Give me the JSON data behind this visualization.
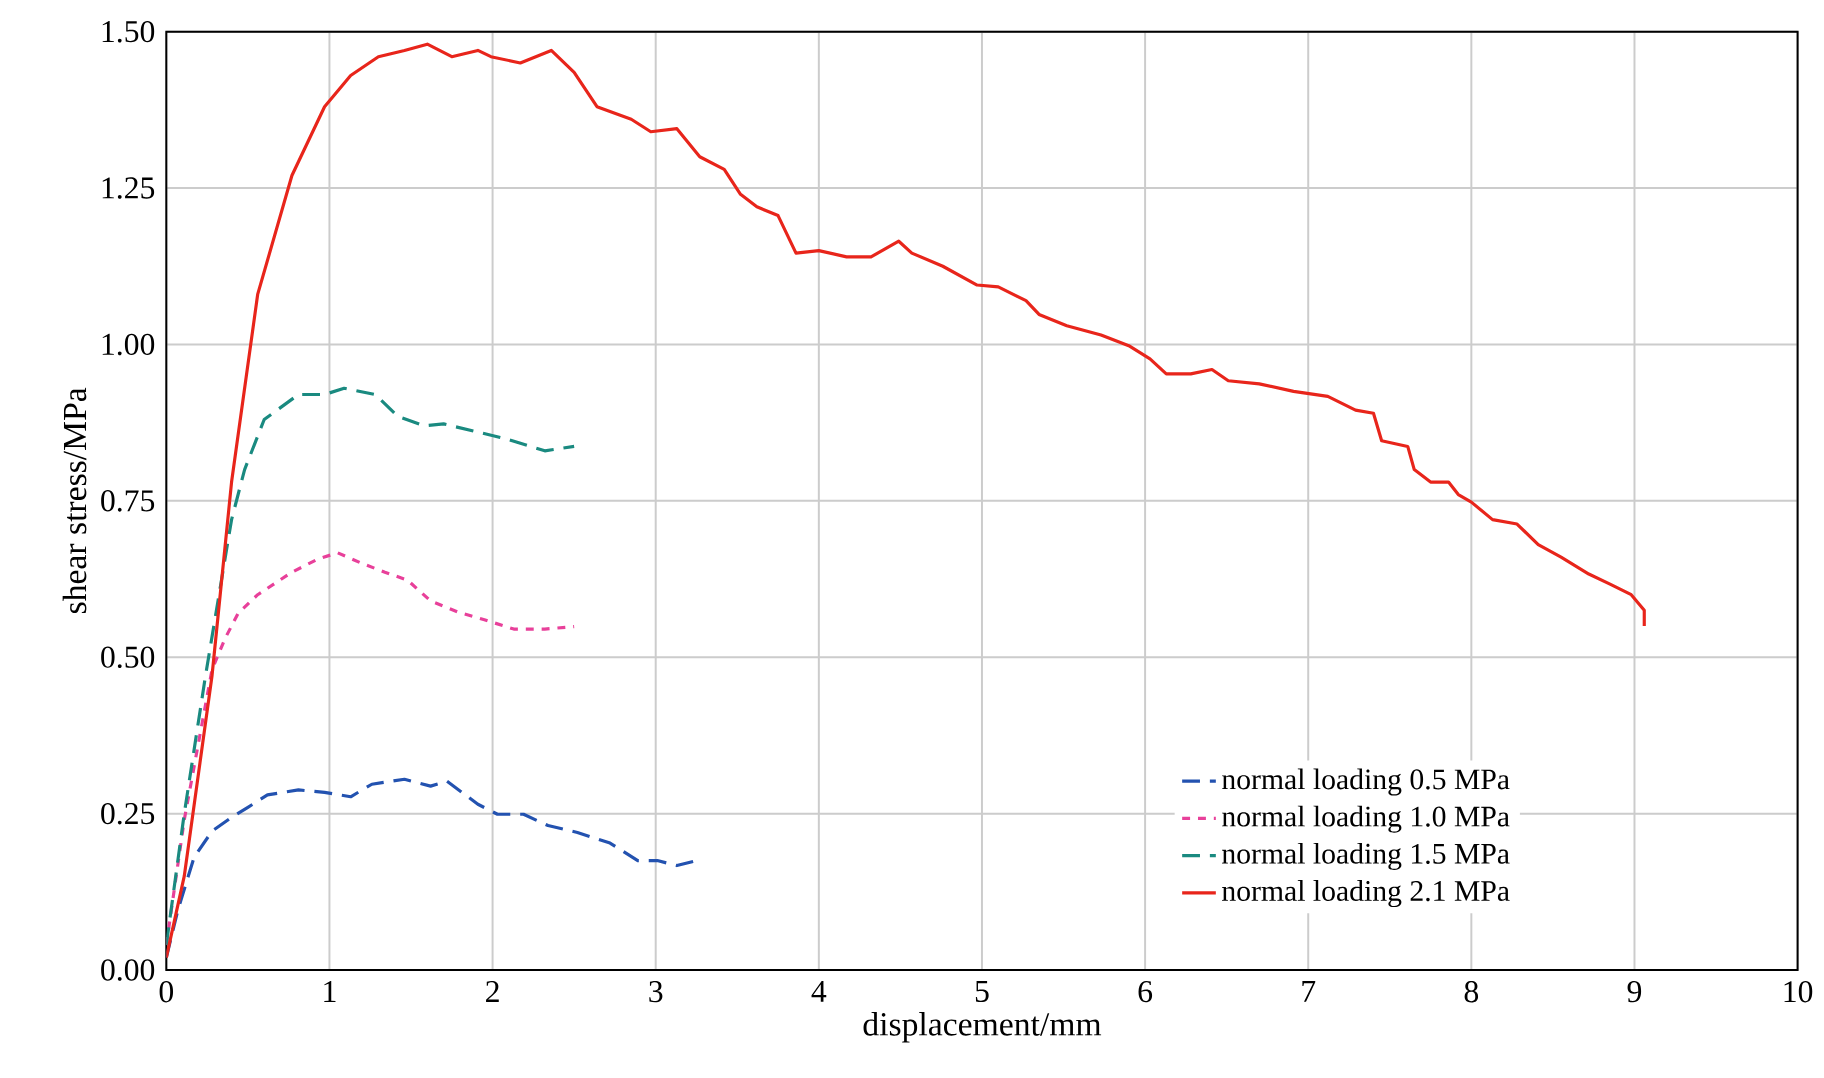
{
  "chart_data": {
    "type": "line",
    "xlabel": "displacement/mm",
    "ylabel": "shear stress/MPa",
    "xlim": [
      0,
      10
    ],
    "ylim": [
      0,
      1.5
    ],
    "xticks": [
      0,
      1,
      2,
      3,
      4,
      5,
      6,
      7,
      8,
      9,
      10
    ],
    "yticks": [
      {
        "value": 0,
        "label": "0.00"
      },
      {
        "value": 0.25,
        "label": "0.25"
      },
      {
        "value": 0.5,
        "label": "0.50"
      },
      {
        "value": 0.75,
        "label": "0.75"
      },
      {
        "value": 1.0,
        "label": "1.00"
      },
      {
        "value": 1.25,
        "label": "1.25"
      },
      {
        "value": 1.5,
        "label": "1.50"
      }
    ],
    "grid": true,
    "legend": "bottom right",
    "marker": "none",
    "series": [
      {
        "name": "normal loading 0.5 MPa",
        "color": "#2352b0",
        "line_style": "dashed",
        "x": [
          0,
          0.07,
          0.17,
          0.28,
          0.4,
          0.5,
          0.62,
          0.81,
          0.97,
          1.13,
          1.26,
          1.46,
          1.62,
          1.72,
          1.91,
          2.03,
          2.19,
          2.34,
          2.52,
          2.72,
          2.89,
          3.01,
          3.13,
          3.25
        ],
        "values": [
          0.02,
          0.095,
          0.18,
          0.222,
          0.244,
          0.26,
          0.28,
          0.288,
          0.284,
          0.277,
          0.297,
          0.305,
          0.294,
          0.302,
          0.265,
          0.249,
          0.249,
          0.231,
          0.22,
          0.203,
          0.175,
          0.175,
          0.167,
          0.175
        ]
      },
      {
        "name": "normal loading 1.0 MPa",
        "color": "#e8409a",
        "line_style": "dotted",
        "x": [
          0,
          0.11,
          0.28,
          0.36,
          0.44,
          0.56,
          0.77,
          0.93,
          1.05,
          1.2,
          1.34,
          1.48,
          1.62,
          1.79,
          1.95,
          2.13,
          2.32,
          2.5
        ],
        "values": [
          0.04,
          0.24,
          0.48,
          0.53,
          0.57,
          0.6,
          0.636,
          0.657,
          0.667,
          0.65,
          0.636,
          0.623,
          0.59,
          0.572,
          0.56,
          0.545,
          0.545,
          0.549
        ]
      },
      {
        "name": "normal loading 1.5 MPa",
        "color": "#1a8a80",
        "line_style": "dashed",
        "x": [
          0,
          0.11,
          0.24,
          0.4,
          0.48,
          0.6,
          0.81,
          0.97,
          1.09,
          1.28,
          1.42,
          1.58,
          1.7,
          1.91,
          2.07,
          2.32,
          2.5
        ],
        "values": [
          0.04,
          0.25,
          0.47,
          0.72,
          0.8,
          0.88,
          0.92,
          0.92,
          0.93,
          0.92,
          0.885,
          0.87,
          0.873,
          0.86,
          0.85,
          0.83,
          0.837
        ]
      },
      {
        "name": "normal loading 2.1 MPa",
        "color": "#e8251b",
        "line_style": "solid",
        "x": [
          0,
          0.11,
          0.28,
          0.4,
          0.56,
          0.77,
          0.97,
          1.13,
          1.3,
          1.46,
          1.6,
          1.75,
          1.91,
          1.99,
          2.17,
          2.36,
          2.5,
          2.64,
          2.85,
          2.97,
          3.13,
          3.27,
          3.42,
          3.52,
          3.62,
          3.75,
          3.86,
          4.0,
          4.17,
          4.32,
          4.49,
          4.57,
          4.76,
          4.97,
          5.1,
          5.27,
          5.35,
          5.52,
          5.73,
          5.9,
          6.03,
          6.13,
          6.28,
          6.41,
          6.51,
          6.7,
          6.91,
          7.12,
          7.29,
          7.4,
          7.45,
          7.61,
          7.65,
          7.75,
          7.86,
          7.92,
          8.0,
          8.13,
          8.28,
          8.41,
          8.55,
          8.72,
          8.85,
          8.98,
          9.06,
          9.06
        ],
        "values": [
          0.02,
          0.15,
          0.47,
          0.78,
          1.08,
          1.27,
          1.38,
          1.43,
          1.46,
          1.47,
          1.48,
          1.46,
          1.47,
          1.46,
          1.45,
          1.47,
          1.435,
          1.38,
          1.36,
          1.34,
          1.345,
          1.3,
          1.28,
          1.24,
          1.22,
          1.206,
          1.146,
          1.15,
          1.14,
          1.14,
          1.165,
          1.146,
          1.125,
          1.095,
          1.092,
          1.07,
          1.048,
          1.03,
          1.015,
          0.998,
          0.977,
          0.953,
          0.953,
          0.96,
          0.942,
          0.937,
          0.925,
          0.917,
          0.895,
          0.89,
          0.846,
          0.837,
          0.8,
          0.78,
          0.78,
          0.76,
          0.748,
          0.72,
          0.713,
          0.68,
          0.66,
          0.633,
          0.617,
          0.6,
          0.575,
          0.55
        ]
      }
    ]
  }
}
